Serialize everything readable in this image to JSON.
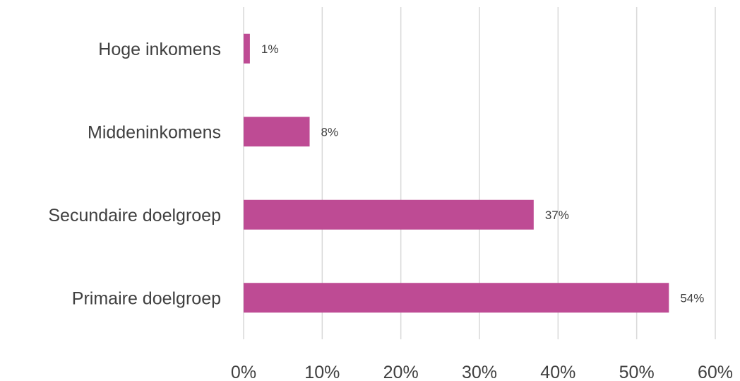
{
  "chart_data": {
    "type": "bar",
    "orientation": "horizontal",
    "categories": [
      "Hoge inkomens",
      "Middeninkomens",
      "Secundaire doelgroep",
      "Primaire doelgroep"
    ],
    "values": [
      0.008,
      0.084,
      0.369,
      0.541
    ],
    "value_labels": [
      "1%",
      "8%",
      "37%",
      "54%"
    ],
    "title": "",
    "xlabel": "",
    "ylabel": "",
    "xlim": [
      0,
      0.6
    ],
    "x_ticks": [
      0,
      0.1,
      0.2,
      0.3,
      0.4,
      0.5,
      0.6
    ],
    "x_tick_labels": [
      "0%",
      "10%",
      "20%",
      "30%",
      "40%",
      "50%",
      "60%"
    ],
    "grid": "vertical",
    "legend": "none",
    "bar_color": "#be4b94",
    "grid_color": "#d9d9d9",
    "text_color": "#404040"
  }
}
